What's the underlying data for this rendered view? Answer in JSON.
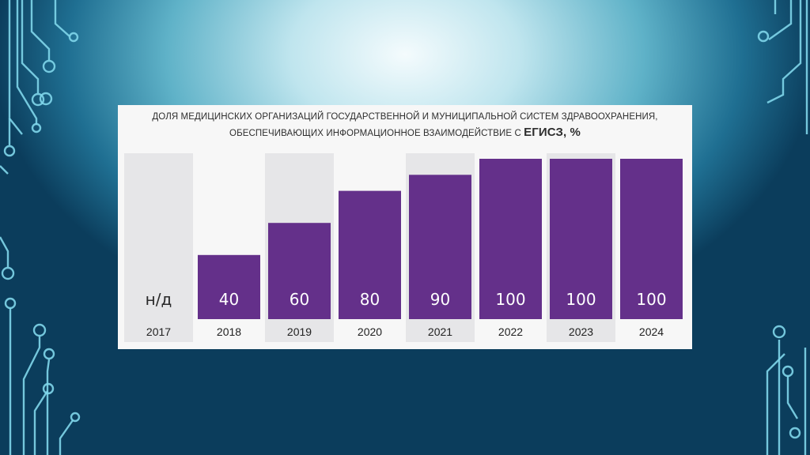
{
  "slide": {
    "title_line1": "ДОЛЯ МЕДИЦИНСКИХ ОРГАНИЗАЦИЙ ГОСУДАРСТВЕННОЙ И МУНИЦИПАЛЬНОЙ СИСТЕМ ЗДРАВООХРАНЕНИЯ,",
    "title_line2_prefix": "ОБЕСПЕЧИВАЮЩИХ ИНФОРМАЦИОННОЕ ВЗАИМОДЕЙСТВИЕ С ",
    "title_line2_big": "ЕГИСЗ, %"
  },
  "colors": {
    "bar": "#64308a",
    "column_bg_a": "#e6e6e8",
    "column_bg_b": "#f7f7f7",
    "year_text": "#222222",
    "na_text": "#2a2a2a",
    "value_text": "#ffffff",
    "circuit": "#7fd6ea"
  },
  "chart_data": {
    "type": "bar",
    "title": "ДОЛЯ МЕДИЦИНСКИХ ОРГАНИЗАЦИЙ ГОСУДАРСТВЕННОЙ И МУНИЦИПАЛЬНОЙ СИСТЕМ ЗДРАВООХРАНЕНИЯ, ОБЕСПЕЧИВАЮЩИХ ИНФОРМАЦИОННОЕ ВЗАИМОДЕЙСТВИЕ С ЕГИСЗ, %",
    "categories": [
      "2017",
      "2018",
      "2019",
      "2020",
      "2021",
      "2022",
      "2023",
      "2024"
    ],
    "values": [
      null,
      40,
      60,
      80,
      90,
      100,
      100,
      100
    ],
    "labels": [
      "н/д",
      "40",
      "60",
      "80",
      "90",
      "100",
      "100",
      "100"
    ],
    "ylim": [
      0,
      100
    ],
    "grid": false,
    "legend": "none"
  }
}
